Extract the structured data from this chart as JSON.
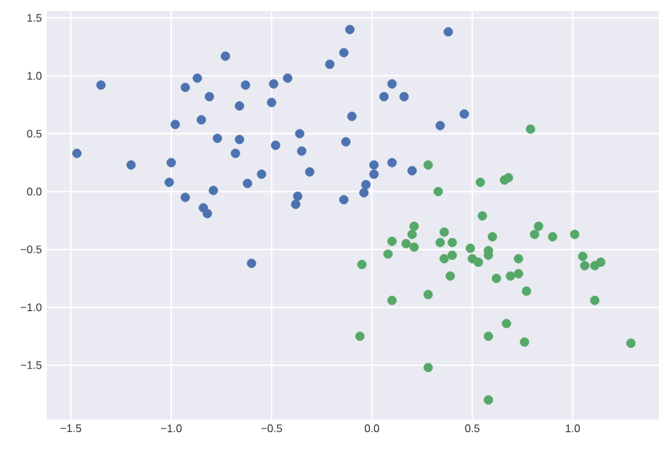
{
  "chart_data": {
    "type": "scatter",
    "grid": true,
    "xlim": [
      -1.62,
      1.43
    ],
    "ylim": [
      -1.97,
      1.56
    ],
    "xticks": [
      {
        "value": -1.5,
        "label": "−1.5"
      },
      {
        "value": -1.0,
        "label": "−1.0"
      },
      {
        "value": -0.5,
        "label": "−0.5"
      },
      {
        "value": 0.0,
        "label": "0.0"
      },
      {
        "value": 0.5,
        "label": "0.5"
      },
      {
        "value": 1.0,
        "label": "1.0"
      }
    ],
    "yticks": [
      {
        "value": -1.5,
        "label": "−1.5"
      },
      {
        "value": -1.0,
        "label": "−1.0"
      },
      {
        "value": -0.5,
        "label": "−0.5"
      },
      {
        "value": 0.0,
        "label": "0.0"
      },
      {
        "value": 0.5,
        "label": "0.5"
      },
      {
        "value": 1.0,
        "label": "1.0"
      },
      {
        "value": 1.5,
        "label": "1.5"
      }
    ],
    "series": [
      {
        "color": "#4c72b0",
        "x": [
          -0.11,
          -0.14,
          -0.21,
          -0.73,
          -1.35,
          -0.93,
          -0.87,
          -0.81,
          -0.63,
          -0.49,
          -0.42,
          -0.5,
          -0.66,
          -0.98,
          -0.85,
          -0.1,
          0.06,
          -0.77,
          -0.66,
          -0.36,
          -1.47,
          -1.2,
          -1.0,
          -0.68,
          -0.48,
          -0.35,
          -0.13,
          -1.01,
          -0.55,
          -0.31,
          0.01,
          0.01,
          -0.62,
          -0.79,
          -0.93,
          -0.84,
          -0.82,
          -0.37,
          -0.38,
          -0.14,
          -0.03,
          -0.04,
          0.1,
          0.16,
          0.38,
          0.34,
          0.46,
          0.1,
          0.2,
          -0.6
        ],
        "values": [
          1.4,
          1.2,
          1.1,
          1.17,
          0.92,
          0.9,
          0.98,
          0.82,
          0.92,
          0.93,
          0.98,
          0.77,
          0.74,
          0.58,
          0.62,
          0.65,
          0.82,
          0.46,
          0.45,
          0.5,
          0.33,
          0.23,
          0.25,
          0.33,
          0.4,
          0.35,
          0.43,
          0.08,
          0.15,
          0.17,
          0.23,
          0.15,
          0.07,
          0.01,
          -0.05,
          -0.14,
          -0.19,
          -0.04,
          -0.11,
          -0.07,
          0.06,
          -0.01,
          0.93,
          0.82,
          1.38,
          0.57,
          0.67,
          0.25,
          0.18,
          -0.62
        ]
      },
      {
        "color": "#55a868",
        "x": [
          0.28,
          0.79,
          0.33,
          0.54,
          0.66,
          0.68,
          0.55,
          0.21,
          0.2,
          0.1,
          0.17,
          0.21,
          0.08,
          0.36,
          0.34,
          0.4,
          0.36,
          0.4,
          0.39,
          0.49,
          0.5,
          0.53,
          0.58,
          0.58,
          0.6,
          0.73,
          0.62,
          0.69,
          0.73,
          0.77,
          0.81,
          0.83,
          0.9,
          1.01,
          1.05,
          1.06,
          1.11,
          1.14,
          1.11,
          -0.05,
          0.1,
          0.28,
          -0.06,
          0.58,
          0.67,
          0.76,
          1.29,
          0.28,
          0.58
        ],
        "values": [
          0.23,
          0.54,
          0.0,
          0.08,
          0.1,
          0.12,
          -0.21,
          -0.3,
          -0.37,
          -0.43,
          -0.45,
          -0.48,
          -0.54,
          -0.35,
          -0.44,
          -0.44,
          -0.58,
          -0.55,
          -0.73,
          -0.49,
          -0.58,
          -0.61,
          -0.51,
          -0.55,
          -0.39,
          -0.58,
          -0.75,
          -0.73,
          -0.71,
          -0.86,
          -0.37,
          -0.3,
          -0.39,
          -0.37,
          -0.56,
          -0.64,
          -0.64,
          -0.61,
          -0.94,
          -0.63,
          -0.94,
          -0.89,
          -1.25,
          -1.25,
          -1.14,
          -1.3,
          -1.31,
          -1.52,
          -1.8
        ]
      }
    ]
  }
}
